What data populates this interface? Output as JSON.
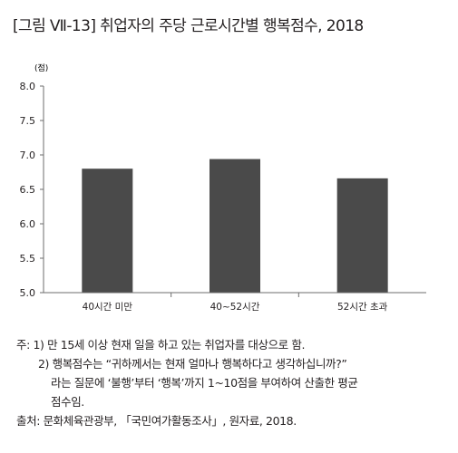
{
  "figure": {
    "title": "[그림 Ⅶ-13]  취업자의 주당 근로시간별 행복점수, 2018"
  },
  "chart_data": {
    "type": "bar",
    "unit": "(점)",
    "categories": [
      "40시간 미만",
      "40~52시간",
      "52시간 초과"
    ],
    "values": [
      6.8,
      6.94,
      6.66
    ],
    "ylim": [
      5.0,
      8.0
    ],
    "yticks": [
      "8.0",
      "7.5",
      "7.0",
      "6.5",
      "6.0",
      "5.5",
      "5.0"
    ],
    "grid": false,
    "legend": "none",
    "bar_color": "#4a4a4a"
  },
  "notes": {
    "note1": "주: 1) 만 15세 이상 현재 일을 하고 있는 취업자를 대상으로 함.",
    "note2_line1": "2) 행복점수는 “귀하께서는 현재 얼마나 행복하다고 생각하십니까?”",
    "note2_line2": "라는 질문에 ‘불행’부터 ‘행복’까지 1~10점을 부여하여 산출한 평균",
    "note2_line3": "점수임.",
    "source": "출처: 문화체육관광부, 「국민여가활동조사」, 원자료, 2018."
  }
}
